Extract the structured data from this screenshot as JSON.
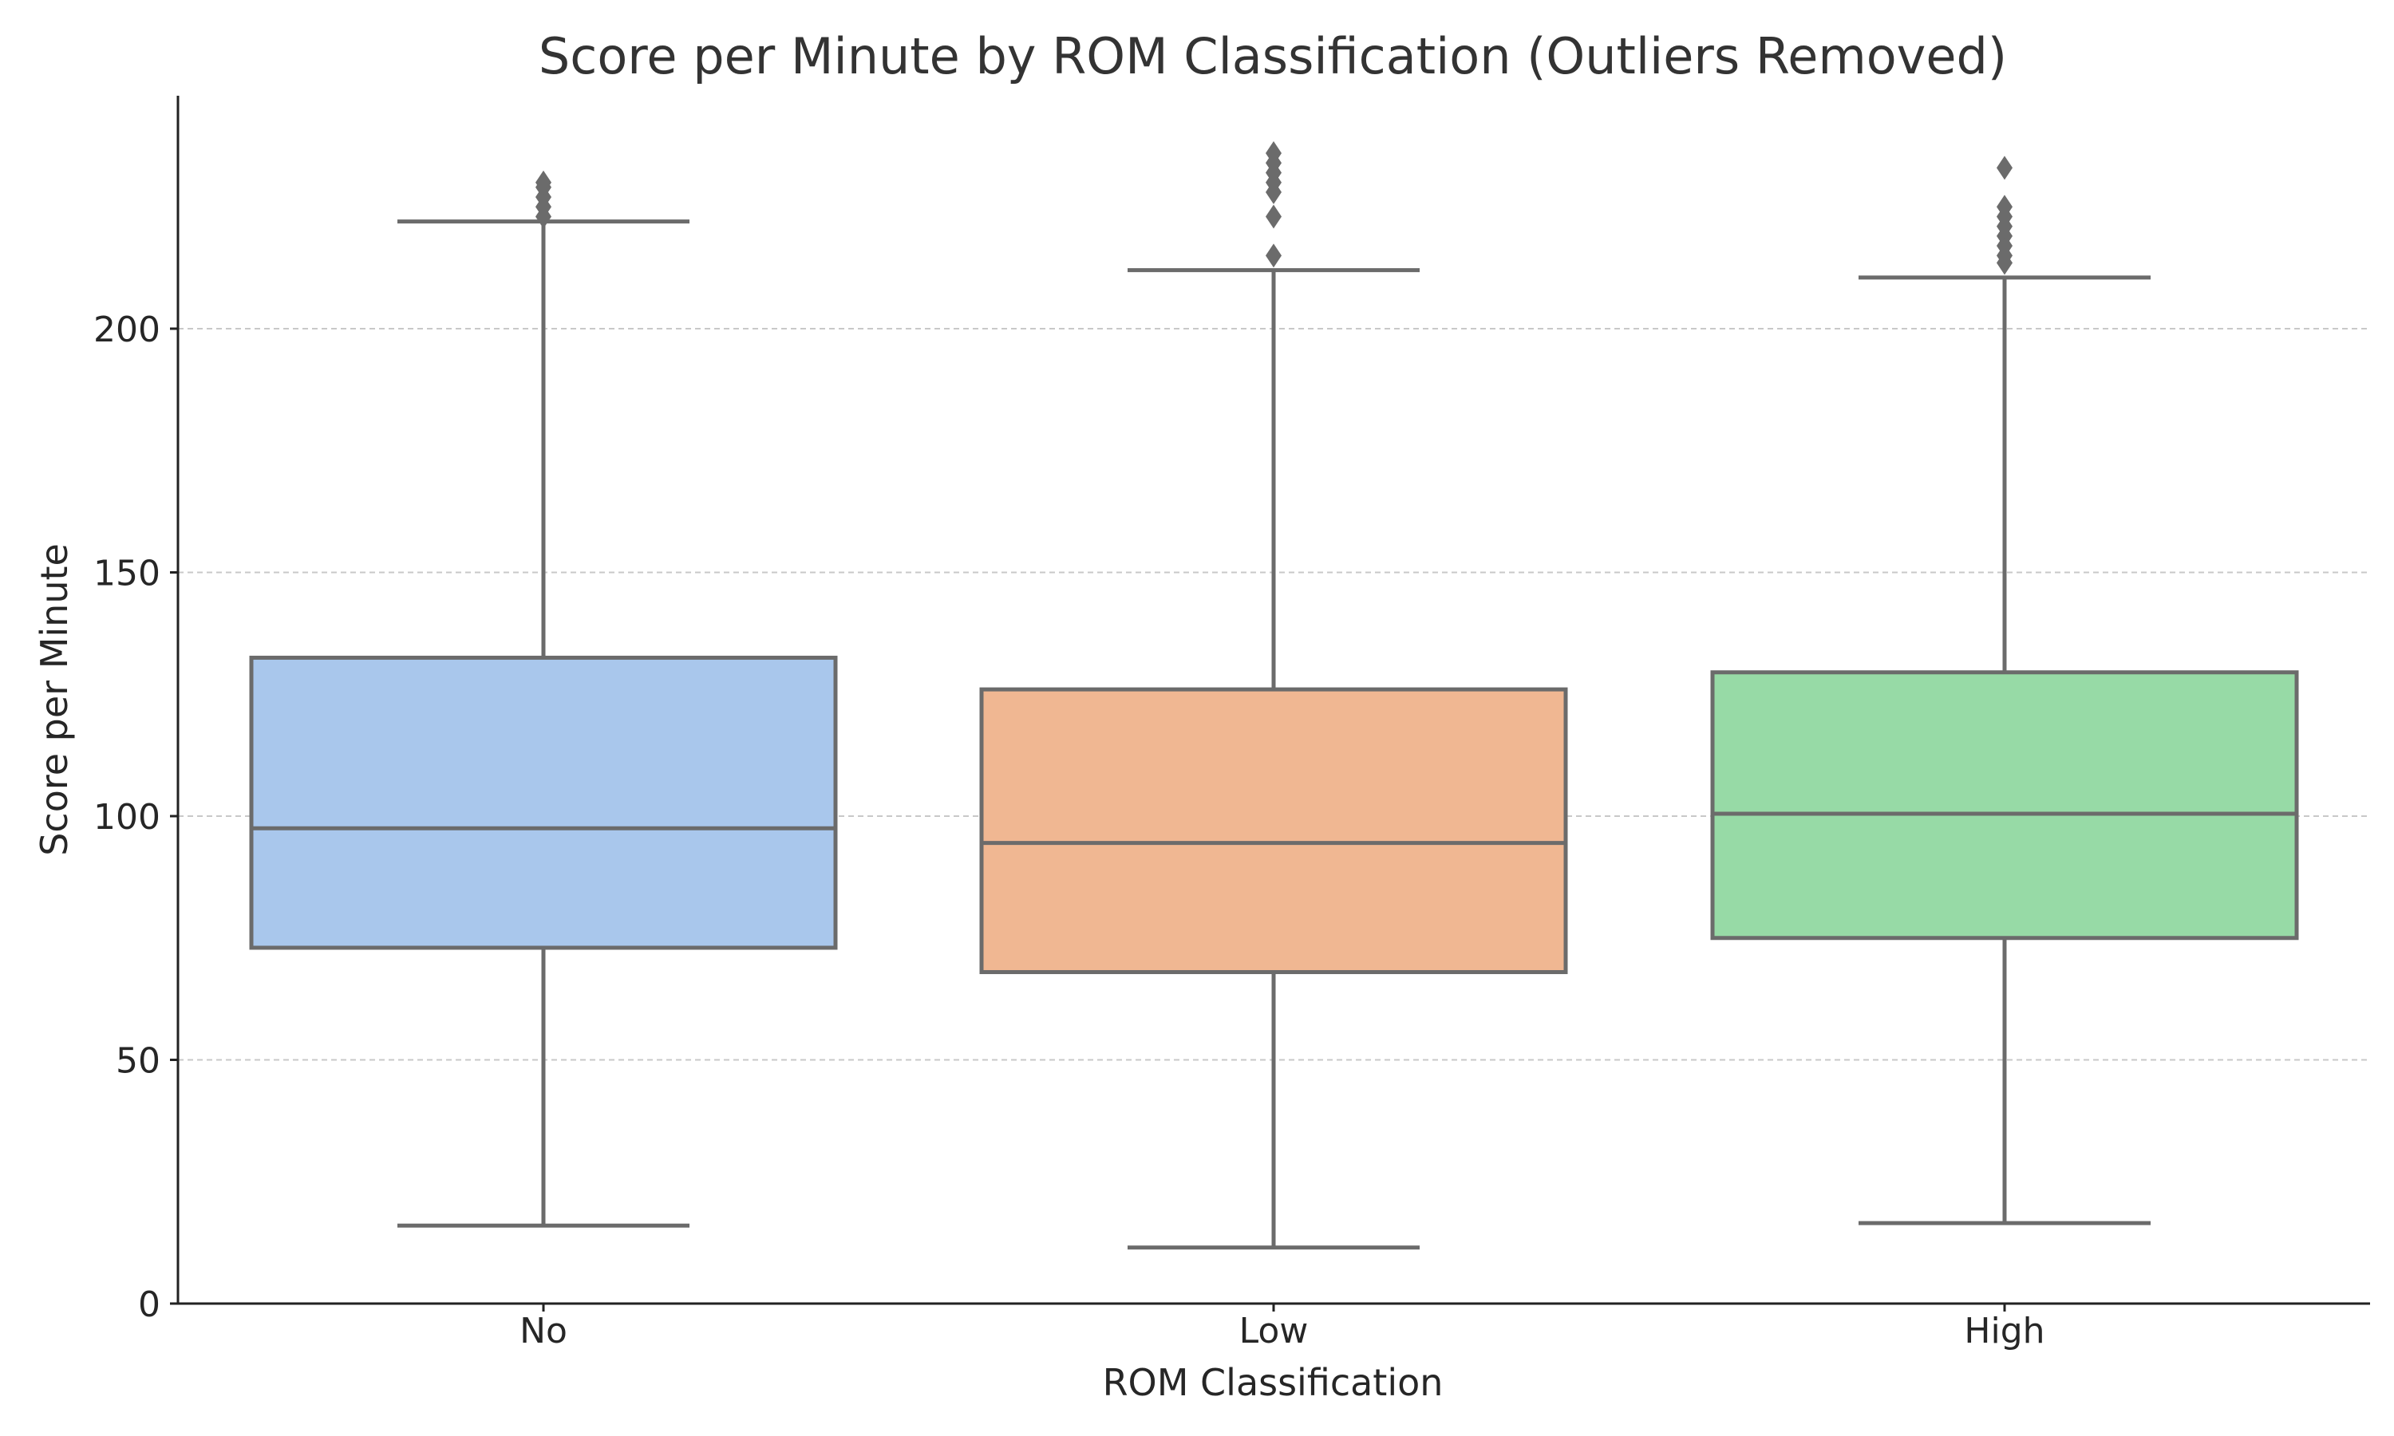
{
  "chart_data": {
    "type": "box",
    "title": "Score per Minute by ROM Classification (Outliers Removed)",
    "xlabel": "ROM Classification",
    "ylabel": "Score per Minute",
    "ylim": [
      0,
      248
    ],
    "yticks": [
      0,
      50,
      100,
      150,
      200
    ],
    "grid": "y-dashed",
    "categories": [
      "No",
      "Low",
      "High"
    ],
    "boxes": [
      {
        "category": "No",
        "color": "#a9c7ec",
        "whisker_low": 16,
        "q1": 73,
        "median": 97.5,
        "q3": 132.5,
        "whisker_high": 222,
        "outliers": [
          223,
          225,
          227,
          229,
          230
        ]
      },
      {
        "category": "Low",
        "color": "#f0b792",
        "whisker_low": 11.5,
        "q1": 68,
        "median": 94.5,
        "q3": 126,
        "whisker_high": 212,
        "outliers": [
          215,
          223,
          228,
          230,
          232,
          234,
          236
        ]
      },
      {
        "category": "High",
        "color": "#97daa6",
        "whisker_low": 16.5,
        "q1": 75,
        "median": 100.5,
        "q3": 129.5,
        "whisker_high": 210.5,
        "outliers": [
          213.5,
          215,
          217,
          219,
          221,
          223,
          225,
          233
        ]
      }
    ]
  }
}
